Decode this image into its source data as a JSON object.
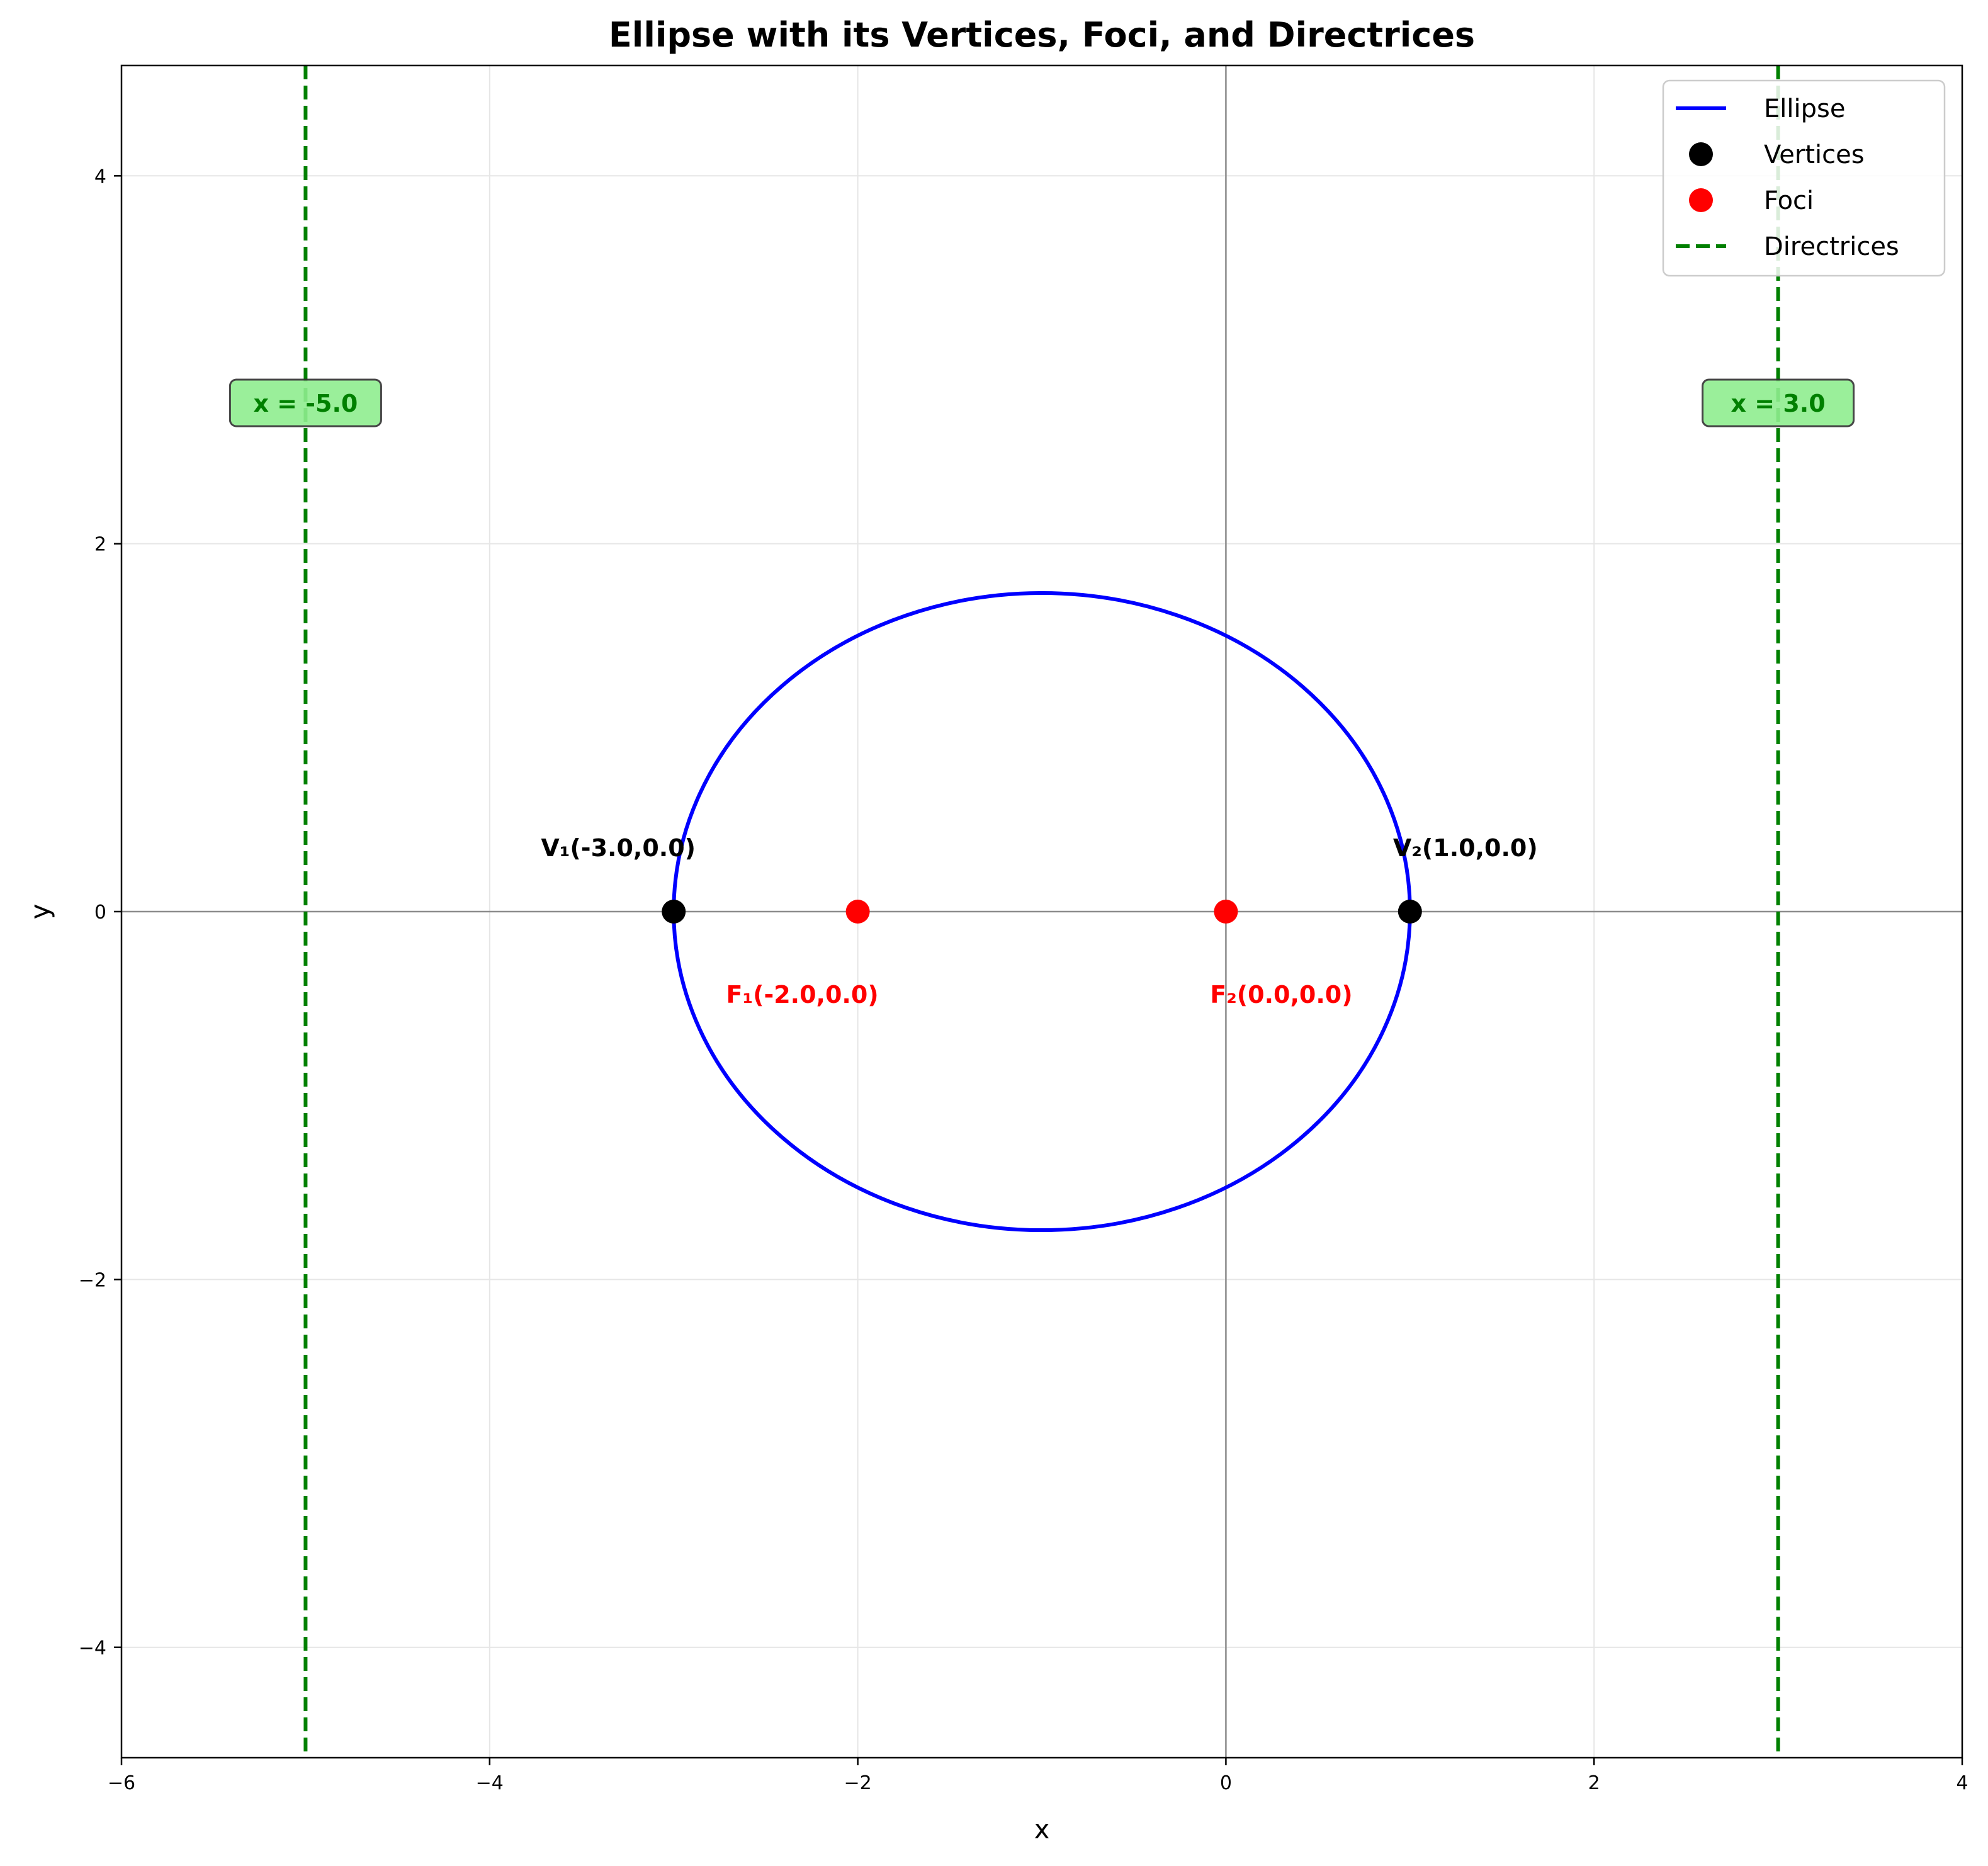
{
  "chart_data": {
    "type": "line",
    "title": "Ellipse with its Vertices, Foci, and Directrices",
    "xlabel": "x",
    "ylabel": "y",
    "xlim": [
      -6,
      4
    ],
    "ylim": [
      -4.6,
      4.6
    ],
    "xticks": [
      -6,
      -4,
      -2,
      0,
      2,
      4
    ],
    "yticks": [
      -4,
      -2,
      0,
      2,
      4
    ],
    "xtick_labels": [
      "−6",
      "−4",
      "−2",
      "0",
      "2",
      "4"
    ],
    "ytick_labels": [
      "−4",
      "−2",
      "0",
      "2",
      "4"
    ],
    "grid": true,
    "legend_position": "top-right",
    "ellipse": {
      "name": "Ellipse",
      "center": [
        -1,
        0
      ],
      "a": 2,
      "b": 1.732,
      "color": "#0000ff"
    },
    "vertices": {
      "name": "Vertices",
      "color": "#000000",
      "points": [
        {
          "x": -3.0,
          "y": 0.0,
          "label": "V₁(-3.0,0.0)"
        },
        {
          "x": 1.0,
          "y": 0.0,
          "label": "V₂(1.0,0.0)"
        }
      ]
    },
    "foci": {
      "name": "Foci",
      "color": "#ff0000",
      "points": [
        {
          "x": -2.0,
          "y": 0.0,
          "label": "F₁(-2.0,0.0)"
        },
        {
          "x": 0.0,
          "y": 0.0,
          "label": "F₂(0.0,0.0)"
        }
      ]
    },
    "directrices": {
      "name": "Directrices",
      "color": "#008000",
      "label_bg": "#90ee90",
      "lines": [
        {
          "x": -5.0,
          "label": "x = -5.0"
        },
        {
          "x": 3.0,
          "label": "x = 3.0"
        }
      ]
    }
  }
}
